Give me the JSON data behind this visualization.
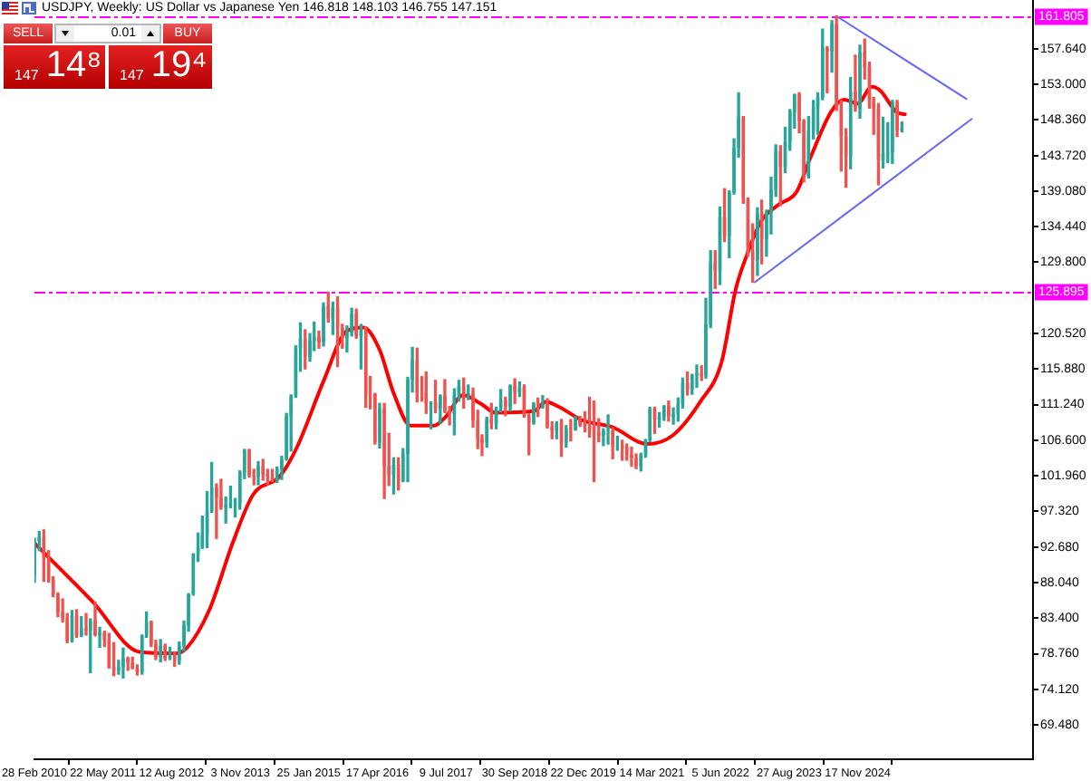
{
  "chart_data": {
    "type": "candlestick",
    "title": "USDJPY, Weekly: US Dollar vs Japanese Yen 146.818 148.103 146.755 147.151",
    "annotations": [
      "SELL",
      "0.01",
      "BUY",
      "147",
      "14⁸",
      "147",
      "19⁴"
    ],
    "x": [
      "2010-03",
      "2010-04",
      "2010-05",
      "2010-06",
      "2010-07",
      "2010-08",
      "2010-09",
      "2010-10",
      "2010-11",
      "2010-12",
      "2011-01",
      "2011-02",
      "2011-03",
      "2011-04",
      "2011-05",
      "2011-06",
      "2011-07",
      "2011-08",
      "2011-09",
      "2011-10",
      "2011-11",
      "2011-12",
      "2012-01",
      "2012-02",
      "2012-03",
      "2012-04",
      "2012-05",
      "2012-06",
      "2012-07",
      "2012-08",
      "2012-09",
      "2012-10",
      "2012-11",
      "2012-12",
      "2013-01",
      "2013-02",
      "2013-03",
      "2013-04",
      "2013-05",
      "2013-06",
      "2013-07",
      "2013-08",
      "2013-09",
      "2013-10",
      "2013-11",
      "2013-12",
      "2014-01",
      "2014-02",
      "2014-03",
      "2014-04",
      "2014-05",
      "2014-06",
      "2014-07",
      "2014-08",
      "2014-09",
      "2014-10",
      "2014-11",
      "2014-12",
      "2015-01",
      "2015-02",
      "2015-03",
      "2015-04",
      "2015-05",
      "2015-06",
      "2015-07",
      "2015-08",
      "2015-09",
      "2015-10",
      "2015-11",
      "2015-12",
      "2016-01",
      "2016-02",
      "2016-03",
      "2016-04",
      "2016-05",
      "2016-06",
      "2016-07",
      "2016-08",
      "2016-09",
      "2016-10",
      "2016-11",
      "2016-12",
      "2017-01",
      "2017-02",
      "2017-03",
      "2017-04",
      "2017-05",
      "2017-06",
      "2017-07",
      "2017-08",
      "2017-09",
      "2017-10",
      "2017-11",
      "2017-12",
      "2018-01",
      "2018-02",
      "2018-03",
      "2018-04",
      "2018-05",
      "2018-06",
      "2018-07",
      "2018-08",
      "2018-09",
      "2018-10",
      "2018-11",
      "2018-12",
      "2019-01",
      "2019-02",
      "2019-03",
      "2019-04",
      "2019-05",
      "2019-06",
      "2019-07",
      "2019-08",
      "2019-09",
      "2019-10",
      "2019-11",
      "2019-12",
      "2020-01",
      "2020-02",
      "2020-03",
      "2020-04",
      "2020-05",
      "2020-06",
      "2020-07",
      "2020-08",
      "2020-09",
      "2020-10",
      "2020-11",
      "2020-12",
      "2021-01",
      "2021-02",
      "2021-03",
      "2021-04",
      "2021-05",
      "2021-06",
      "2021-07",
      "2021-08",
      "2021-09",
      "2021-10",
      "2021-11",
      "2021-12",
      "2022-01",
      "2022-02",
      "2022-03",
      "2022-04",
      "2022-05",
      "2022-06",
      "2022-07",
      "2022-08",
      "2022-09",
      "2022-10",
      "2022-11",
      "2022-12",
      "2023-01",
      "2023-02",
      "2023-03",
      "2023-04",
      "2023-05",
      "2023-06",
      "2023-07",
      "2023-08",
      "2023-09",
      "2023-10",
      "2023-11",
      "2023-12",
      "2024-01",
      "2024-02",
      "2024-03",
      "2024-04",
      "2024-05",
      "2024-06",
      "2024-07",
      "2024-08",
      "2024-09",
      "2024-10",
      "2024-11",
      "2024-12",
      "2025-01",
      "2025-02",
      "2025-03",
      "2025-04",
      "2025-05",
      "2025-06",
      "2025-07",
      "2025-08",
      "2025-09"
    ],
    "ohlc": [
      [
        89.0,
        93.8,
        88.1,
        93.5
      ],
      [
        93.5,
        94.7,
        92.2,
        94.0
      ],
      [
        94.0,
        94.9,
        88.2,
        91.3
      ],
      [
        91.3,
        92.2,
        88.1,
        88.4
      ],
      [
        88.4,
        88.8,
        86.2,
        86.5
      ],
      [
        86.5,
        86.7,
        83.6,
        84.2
      ],
      [
        84.2,
        85.9,
        82.9,
        83.5
      ],
      [
        83.5,
        84.0,
        80.2,
        80.4
      ],
      [
        80.4,
        84.4,
        80.3,
        83.7
      ],
      [
        83.7,
        84.5,
        80.9,
        81.1
      ],
      [
        81.1,
        83.6,
        81.0,
        82.0
      ],
      [
        82.0,
        84.0,
        81.2,
        81.8
      ],
      [
        81.8,
        83.3,
        76.3,
        83.1
      ],
      [
        83.1,
        85.5,
        81.1,
        81.2
      ],
      [
        81.2,
        82.2,
        79.6,
        81.5
      ],
      [
        81.5,
        81.7,
        79.7,
        80.5
      ],
      [
        80.5,
        81.4,
        76.9,
        77.0
      ],
      [
        77.0,
        80.2,
        75.9,
        76.6
      ],
      [
        76.6,
        77.9,
        76.1,
        77.0
      ],
      [
        77.0,
        79.5,
        75.6,
        78.2
      ],
      [
        78.2,
        78.3,
        76.6,
        77.6
      ],
      [
        77.6,
        78.3,
        76.8,
        76.9
      ],
      [
        76.9,
        77.3,
        76.0,
        76.3
      ],
      [
        76.3,
        81.2,
        76.1,
        81.1
      ],
      [
        81.1,
        84.2,
        80.9,
        82.9
      ],
      [
        82.9,
        83.0,
        79.7,
        80.0
      ],
      [
        80.0,
        80.5,
        78.0,
        78.3
      ],
      [
        78.3,
        80.6,
        77.7,
        79.8
      ],
      [
        79.8,
        80.0,
        77.9,
        78.1
      ],
      [
        78.1,
        79.6,
        78.0,
        78.4
      ],
      [
        78.4,
        78.9,
        77.1,
        77.9
      ],
      [
        77.9,
        80.3,
        77.4,
        79.8
      ],
      [
        79.8,
        83.0,
        79.1,
        82.5
      ],
      [
        82.5,
        86.6,
        81.7,
        86.5
      ],
      [
        86.5,
        91.8,
        86.4,
        91.7
      ],
      [
        91.7,
        94.5,
        90.8,
        92.6
      ],
      [
        92.6,
        96.7,
        92.5,
        94.2
      ],
      [
        94.2,
        99.9,
        92.6,
        97.4
      ],
      [
        97.4,
        103.7,
        97.2,
        100.4
      ],
      [
        100.4,
        100.9,
        93.8,
        99.1
      ],
      [
        99.1,
        101.5,
        97.6,
        97.8
      ],
      [
        97.8,
        99.2,
        95.8,
        98.2
      ],
      [
        98.2,
        100.6,
        97.8,
        98.3
      ],
      [
        98.3,
        99.0,
        96.6,
        98.4
      ],
      [
        98.4,
        102.6,
        97.6,
        102.4
      ],
      [
        102.4,
        105.4,
        101.6,
        105.3
      ],
      [
        105.3,
        105.4,
        101.8,
        102.0
      ],
      [
        102.0,
        102.8,
        100.8,
        101.8
      ],
      [
        101.8,
        103.8,
        100.8,
        103.2
      ],
      [
        103.2,
        104.1,
        101.4,
        102.2
      ],
      [
        102.2,
        102.8,
        100.8,
        101.8
      ],
      [
        101.8,
        102.8,
        101.2,
        101.3
      ],
      [
        101.3,
        103.1,
        101.1,
        102.8
      ],
      [
        102.8,
        104.5,
        101.5,
        104.1
      ],
      [
        104.1,
        110.1,
        104.0,
        109.7
      ],
      [
        109.7,
        112.5,
        105.2,
        112.3
      ],
      [
        112.3,
        118.9,
        112.2,
        118.6
      ],
      [
        118.6,
        121.9,
        115.6,
        119.8
      ],
      [
        119.8,
        121.0,
        115.9,
        117.5
      ],
      [
        117.5,
        120.5,
        116.9,
        119.6
      ],
      [
        119.6,
        122.0,
        118.3,
        120.1
      ],
      [
        120.1,
        120.8,
        118.6,
        119.4
      ],
      [
        119.4,
        124.5,
        118.9,
        124.1
      ],
      [
        124.1,
        125.9,
        122.0,
        122.5
      ],
      [
        122.5,
        124.6,
        120.4,
        123.9
      ],
      [
        123.9,
        125.3,
        116.2,
        121.2
      ],
      [
        121.2,
        121.7,
        118.6,
        119.9
      ],
      [
        119.9,
        121.5,
        118.1,
        120.6
      ],
      [
        120.6,
        123.8,
        120.2,
        123.1
      ],
      [
        123.1,
        123.7,
        119.9,
        120.2
      ],
      [
        120.2,
        121.7,
        115.9,
        121.0
      ],
      [
        121.0,
        121.4,
        110.9,
        112.7
      ],
      [
        112.7,
        114.9,
        110.7,
        112.6
      ],
      [
        112.6,
        112.7,
        106.1,
        106.3
      ],
      [
        106.3,
        111.4,
        105.6,
        110.7
      ],
      [
        110.7,
        111.4,
        99.0,
        103.2
      ],
      [
        103.2,
        107.5,
        100.7,
        102.1
      ],
      [
        102.1,
        104.3,
        99.6,
        103.4
      ],
      [
        103.4,
        104.3,
        100.1,
        101.3
      ],
      [
        101.3,
        105.5,
        101.2,
        104.8
      ],
      [
        104.8,
        114.8,
        101.2,
        114.5
      ],
      [
        114.5,
        118.7,
        112.9,
        117.0
      ],
      [
        117.0,
        118.6,
        111.6,
        112.8
      ],
      [
        112.8,
        114.9,
        111.7,
        112.7
      ],
      [
        112.7,
        115.5,
        110.1,
        111.4
      ],
      [
        111.4,
        111.6,
        108.1,
        111.5
      ],
      [
        111.5,
        114.4,
        110.2,
        110.8
      ],
      [
        110.8,
        112.5,
        108.8,
        112.4
      ],
      [
        112.4,
        114.5,
        110.2,
        110.3
      ],
      [
        110.3,
        111.0,
        108.6,
        110.0
      ],
      [
        110.0,
        113.3,
        107.3,
        112.5
      ],
      [
        112.5,
        114.4,
        111.7,
        113.7
      ],
      [
        113.7,
        114.7,
        110.8,
        112.5
      ],
      [
        112.5,
        113.8,
        111.9,
        112.7
      ],
      [
        112.7,
        113.4,
        108.3,
        109.2
      ],
      [
        109.2,
        110.5,
        105.5,
        106.7
      ],
      [
        106.7,
        107.3,
        104.6,
        106.3
      ],
      [
        106.3,
        109.6,
        105.7,
        109.3
      ],
      [
        109.3,
        111.4,
        108.1,
        108.8
      ],
      [
        108.8,
        110.9,
        108.1,
        110.7
      ],
      [
        110.7,
        113.2,
        110.3,
        111.8
      ],
      [
        111.8,
        112.2,
        109.8,
        111.0
      ],
      [
        111.0,
        113.8,
        110.4,
        113.7
      ],
      [
        113.7,
        114.6,
        111.4,
        112.9
      ],
      [
        112.9,
        114.2,
        112.3,
        113.5
      ],
      [
        113.5,
        113.8,
        109.6,
        109.7
      ],
      [
        109.7,
        110.0,
        104.7,
        108.9
      ],
      [
        108.9,
        111.5,
        108.7,
        111.4
      ],
      [
        111.4,
        112.1,
        109.7,
        110.9
      ],
      [
        110.9,
        112.4,
        110.8,
        111.4
      ],
      [
        111.4,
        112.0,
        108.2,
        108.3
      ],
      [
        108.3,
        109.0,
        106.8,
        107.9
      ],
      [
        107.9,
        109.0,
        106.8,
        108.8
      ],
      [
        108.8,
        109.3,
        104.5,
        106.3
      ],
      [
        106.3,
        108.5,
        105.7,
        108.1
      ],
      [
        108.1,
        109.3,
        106.5,
        108.0
      ],
      [
        108.0,
        109.7,
        107.9,
        109.5
      ],
      [
        109.5,
        109.7,
        108.4,
        108.6
      ],
      [
        108.6,
        110.3,
        107.7,
        108.4
      ],
      [
        108.4,
        112.2,
        107.0,
        107.9
      ],
      [
        107.9,
        111.7,
        101.2,
        107.5
      ],
      [
        107.5,
        109.4,
        106.4,
        107.2
      ],
      [
        107.2,
        108.1,
        105.9,
        107.8
      ],
      [
        107.8,
        109.9,
        106.1,
        107.9
      ],
      [
        107.9,
        108.2,
        104.2,
        105.8
      ],
      [
        105.8,
        107.1,
        105.3,
        105.9
      ],
      [
        105.9,
        106.6,
        104.0,
        105.5
      ],
      [
        105.5,
        106.1,
        104.0,
        104.7
      ],
      [
        104.7,
        105.7,
        103.2,
        104.3
      ],
      [
        104.3,
        104.8,
        102.9,
        103.2
      ],
      [
        103.2,
        104.9,
        102.6,
        104.7
      ],
      [
        104.7,
        106.7,
        104.4,
        106.6
      ],
      [
        106.6,
        110.9,
        106.4,
        110.7
      ],
      [
        110.7,
        110.9,
        107.5,
        109.3
      ],
      [
        109.3,
        110.2,
        108.3,
        109.6
      ],
      [
        109.6,
        111.1,
        109.2,
        111.1
      ],
      [
        111.1,
        111.7,
        109.1,
        109.7
      ],
      [
        109.7,
        110.8,
        108.7,
        110.0
      ],
      [
        110.0,
        112.1,
        109.1,
        111.3
      ],
      [
        111.3,
        114.7,
        110.8,
        114.0
      ],
      [
        114.0,
        115.5,
        112.5,
        113.2
      ],
      [
        113.2,
        115.2,
        112.6,
        115.1
      ],
      [
        115.1,
        116.4,
        113.5,
        115.3
      ],
      [
        115.3,
        116.3,
        114.4,
        115.0
      ],
      [
        115.0,
        125.1,
        114.7,
        121.7
      ],
      [
        121.7,
        131.3,
        121.3,
        129.8
      ],
      [
        129.8,
        131.3,
        126.4,
        128.7
      ],
      [
        128.7,
        137.0,
        126.9,
        135.7
      ],
      [
        135.7,
        139.4,
        132.5,
        133.2
      ],
      [
        133.2,
        139.1,
        130.4,
        138.9
      ],
      [
        138.9,
        145.9,
        138.7,
        144.7
      ],
      [
        144.7,
        151.9,
        143.5,
        148.7
      ],
      [
        148.7,
        148.8,
        137.5,
        138.0
      ],
      [
        138.0,
        138.2,
        130.6,
        131.1
      ],
      [
        131.1,
        134.8,
        127.2,
        130.1
      ],
      [
        130.1,
        136.9,
        128.1,
        136.2
      ],
      [
        136.2,
        137.9,
        129.6,
        132.8
      ],
      [
        132.8,
        136.6,
        130.6,
        136.3
      ],
      [
        136.3,
        140.9,
        133.5,
        139.3
      ],
      [
        139.3,
        145.1,
        138.4,
        144.3
      ],
      [
        144.3,
        145.0,
        137.2,
        142.3
      ],
      [
        142.3,
        147.4,
        141.5,
        145.5
      ],
      [
        145.5,
        149.7,
        144.4,
        149.4
      ],
      [
        149.4,
        151.7,
        147.3,
        151.7
      ],
      [
        151.7,
        151.9,
        146.7,
        148.2
      ],
      [
        148.2,
        148.4,
        140.3,
        141.0
      ],
      [
        141.0,
        148.8,
        140.8,
        147.0
      ],
      [
        147.0,
        150.9,
        145.9,
        150.0
      ],
      [
        150.0,
        151.9,
        146.5,
        151.3
      ],
      [
        151.3,
        160.2,
        151.0,
        157.8
      ],
      [
        157.8,
        157.9,
        151.9,
        157.3
      ],
      [
        157.3,
        161.3,
        154.6,
        160.9
      ],
      [
        160.9,
        161.9,
        149.6,
        150.0
      ],
      [
        150.0,
        150.9,
        141.7,
        146.2
      ],
      [
        146.2,
        147.2,
        139.6,
        143.6
      ],
      [
        143.6,
        153.9,
        142.0,
        152.0
      ],
      [
        152.0,
        156.8,
        149.5,
        149.8
      ],
      [
        149.8,
        158.1,
        148.6,
        157.2
      ],
      [
        157.2,
        158.9,
        153.7,
        155.2
      ],
      [
        155.2,
        155.9,
        149.9,
        150.6
      ],
      [
        150.6,
        151.3,
        146.5,
        149.9
      ],
      [
        149.9,
        150.5,
        139.9,
        143.1
      ],
      [
        143.1,
        148.7,
        142.1,
        144.0
      ],
      [
        144.0,
        148.0,
        142.8,
        144.1
      ],
      [
        144.1,
        150.9,
        142.7,
        150.7
      ],
      [
        150.7,
        150.9,
        146.2,
        147.0
      ],
      [
        147.0,
        148.1,
        146.8,
        147.2
      ]
    ],
    "colors": [
      "#26a69a",
      "#26a69a",
      "#ef5350",
      "#ef5350",
      "#ef5350",
      "#ef5350",
      "#ef5350",
      "#ef5350",
      "#26a69a",
      "#ef5350",
      "#26a69a",
      "#ef5350",
      "#26a69a",
      "#ef5350",
      "#26a69a",
      "#ef5350",
      "#ef5350",
      "#ef5350",
      "#26a69a",
      "#26a69a",
      "#ef5350",
      "#ef5350",
      "#ef5350",
      "#26a69a",
      "#26a69a",
      "#ef5350",
      "#ef5350",
      "#26a69a",
      "#ef5350",
      "#26a69a",
      "#ef5350",
      "#26a69a",
      "#26a69a",
      "#26a69a",
      "#26a69a",
      "#26a69a",
      "#26a69a",
      "#26a69a",
      "#26a69a",
      "#ef5350",
      "#ef5350",
      "#26a69a",
      "#26a69a",
      "#26a69a",
      "#26a69a",
      "#26a69a",
      "#ef5350",
      "#ef5350",
      "#26a69a",
      "#ef5350",
      "#ef5350",
      "#ef5350",
      "#26a69a",
      "#26a69a",
      "#26a69a",
      "#26a69a",
      "#26a69a",
      "#26a69a",
      "#ef5350",
      "#26a69a",
      "#26a69a",
      "#ef5350",
      "#26a69a",
      "#ef5350",
      "#26a69a",
      "#ef5350",
      "#ef5350",
      "#26a69a",
      "#26a69a",
      "#ef5350",
      "#26a69a",
      "#ef5350",
      "#ef5350",
      "#ef5350",
      "#26a69a",
      "#ef5350",
      "#ef5350",
      "#26a69a",
      "#ef5350",
      "#26a69a",
      "#26a69a",
      "#26a69a",
      "#ef5350",
      "#ef5350",
      "#ef5350",
      "#26a69a",
      "#ef5350",
      "#26a69a",
      "#ef5350",
      "#ef5350",
      "#26a69a",
      "#26a69a",
      "#ef5350",
      "#26a69a",
      "#ef5350",
      "#ef5350",
      "#ef5350",
      "#26a69a",
      "#ef5350",
      "#26a69a",
      "#26a69a",
      "#ef5350",
      "#26a69a",
      "#ef5350",
      "#26a69a",
      "#ef5350",
      "#ef5350",
      "#26a69a",
      "#ef5350",
      "#26a69a",
      "#ef5350",
      "#ef5350",
      "#26a69a",
      "#ef5350",
      "#26a69a",
      "#ef5350",
      "#26a69a",
      "#ef5350",
      "#ef5350",
      "#ef5350",
      "#ef5350",
      "#ef5350",
      "#26a69a",
      "#26a69a",
      "#ef5350",
      "#26a69a",
      "#ef5350",
      "#ef5350",
      "#ef5350",
      "#ef5350",
      "#26a69a",
      "#26a69a",
      "#26a69a",
      "#ef5350",
      "#26a69a",
      "#26a69a",
      "#ef5350",
      "#26a69a",
      "#26a69a",
      "#26a69a",
      "#ef5350",
      "#26a69a",
      "#26a69a",
      "#ef5350",
      "#26a69a",
      "#26a69a",
      "#ef5350",
      "#26a69a",
      "#ef5350",
      "#26a69a",
      "#26a69a",
      "#26a69a",
      "#ef5350",
      "#ef5350",
      "#ef5350",
      "#26a69a",
      "#ef5350",
      "#26a69a",
      "#26a69a",
      "#26a69a",
      "#ef5350",
      "#26a69a",
      "#26a69a",
      "#26a69a",
      "#ef5350",
      "#ef5350",
      "#26a69a",
      "#26a69a",
      "#26a69a",
      "#26a69a",
      "#ef5350",
      "#26a69a",
      "#ef5350",
      "#ef5350",
      "#ef5350",
      "#26a69a",
      "#ef5350",
      "#26a69a",
      "#ef5350",
      "#ef5350",
      "#ef5350",
      "#ef5350",
      "#26a69a",
      "#26a69a",
      "#26a69a",
      "#ef5350",
      "#26a69a"
    ],
    "series": [
      {
        "type": "line",
        "color": "#ff0000",
        "x": [
          "2010-02-28",
          "2011-03-13",
          "2012-01-15",
          "2012-09-02",
          "2012-11-18",
          "2013-04-14",
          "2013-09-15",
          "2014-01-26",
          "2014-07-20",
          "2014-11-09",
          "2015-05-03",
          "2015-09-27",
          "2016-01-17",
          "2016-05-01",
          "2016-07-31",
          "2016-11-20",
          "2017-04-23",
          "2017-07-09",
          "2017-10-29",
          "2018-02-25",
          "2018-05-27",
          "2019-02-03",
          "2019-04-21",
          "2019-07-21",
          "2019-12-15",
          "2020-06-28",
          "2021-02-14",
          "2021-08-01",
          "2022-01-23",
          "2022-06-12",
          "2022-09-11",
          "2022-11-27",
          "2023-02-26",
          "2023-06-18",
          "2023-10-15",
          "2024-01-14",
          "2024-05-26",
          "2024-08-18",
          "2024-11-17",
          "2025-02-16",
          "2025-04-13",
          "2025-07-27",
          "2025-09-21"
        ],
        "values": [
          93.2,
          85.6,
          79.0,
          78.8,
          79.5,
          84.4,
          93.2,
          99.5,
          101.9,
          105.7,
          114.4,
          120.8,
          121.3,
          118.4,
          112.8,
          108.5,
          108.5,
          109.7,
          112.5,
          111.3,
          110.2,
          110.4,
          111.6,
          110.9,
          109.2,
          108.3,
          106.1,
          107.3,
          111.6,
          116.8,
          126.2,
          130.9,
          135.2,
          137.3,
          139.0,
          143.5,
          149.4,
          151.0,
          150.5,
          152.7,
          152.2,
          149.4,
          149.1
        ]
      },
      {
        "type": "line",
        "color": "#6666ff",
        "x": [
          "2024-07-01",
          "2026-10-27"
        ],
        "values": [
          161.9,
          151.1
        ]
      },
      {
        "type": "line",
        "color": "#6666ff",
        "x": [
          "2023-01-15",
          "2026-12-01"
        ],
        "values": [
          127.2,
          148.5
        ]
      }
    ],
    "ref_lines": [
      {
        "axis": "y",
        "value": 161.805,
        "label": "161.805",
        "color": "#ff00ff",
        "line_style": "dashed"
      },
      {
        "axis": "y",
        "value": 125.895,
        "label": "125.895",
        "color": "#ff00ff",
        "line_style": "dashed"
      }
    ],
    "xlim": [
      "2010-02-28",
      "2028-01-05"
    ],
    "xticks": [
      {
        "value": "2010-02-28",
        "label": "28 Feb 2010"
      },
      {
        "value": "2011-05-22",
        "label": "22 May 2011"
      },
      {
        "value": "2012-08-12",
        "label": "12 Aug 2012"
      },
      {
        "value": "2013-11-03",
        "label": "3 Nov 2013"
      },
      {
        "value": "2015-01-25",
        "label": "25 Jan 2015"
      },
      {
        "value": "2016-04-17",
        "label": "17 Apr 2016"
      },
      {
        "value": "2017-07-09",
        "label": "9 Jul 2017"
      },
      {
        "value": "2018-09-30",
        "label": "30 Sep 2018"
      },
      {
        "value": "2019-12-22",
        "label": "22 Dec 2019"
      },
      {
        "value": "2021-03-14",
        "label": "14 Mar 2021"
      },
      {
        "value": "2022-06-05",
        "label": "5 Jun 2022"
      },
      {
        "value": "2023-08-27",
        "label": "27 Aug 2023"
      },
      {
        "value": "2024-11-17",
        "label": "17 Nov 2024"
      }
    ],
    "ylim": [
      65.0,
      164.0
    ],
    "yticks": [
      {
        "value": 69.48,
        "label": "69.480"
      },
      {
        "value": 74.12,
        "label": "74.120"
      },
      {
        "value": 78.76,
        "label": "78.760"
      },
      {
        "value": 83.4,
        "label": "83.400"
      },
      {
        "value": 88.04,
        "label": "88.040"
      },
      {
        "value": 92.68,
        "label": "92.680"
      },
      {
        "value": 97.32,
        "label": "97.320"
      },
      {
        "value": 101.96,
        "label": "101.960"
      },
      {
        "value": 106.6,
        "label": "106.600"
      },
      {
        "value": 111.24,
        "label": "111.240"
      },
      {
        "value": 115.88,
        "label": "115.880"
      },
      {
        "value": 120.52,
        "label": "120.520"
      },
      {
        "value": 129.8,
        "label": "129.800"
      },
      {
        "value": 134.44,
        "label": "134.440"
      },
      {
        "value": 139.08,
        "label": "139.080"
      },
      {
        "value": 143.72,
        "label": "143.720"
      },
      {
        "value": 148.36,
        "label": "148.360"
      },
      {
        "value": 153.0,
        "label": "153.000"
      },
      {
        "value": 157.64,
        "label": "157.640"
      }
    ]
  }
}
